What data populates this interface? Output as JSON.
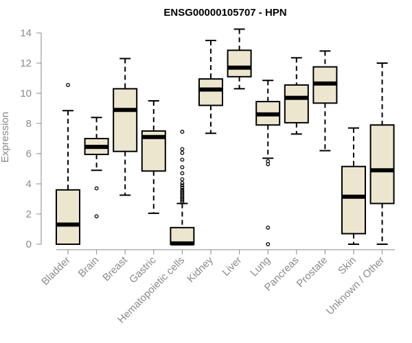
{
  "chart_data": {
    "type": "boxplot",
    "title": "ENSG00000105707 - HPN",
    "xlabel": "",
    "ylabel": "Expression",
    "ylim": [
      0,
      14
    ],
    "yticks": [
      0,
      2,
      4,
      6,
      8,
      10,
      12,
      14
    ],
    "grid": false,
    "legend": "none",
    "colors": {
      "box_fill": "#ede6cf",
      "box_stroke": "#000000",
      "median": "#000000",
      "axis": "#8a8a8a",
      "text": "#8a8a8a"
    },
    "categories": [
      "Bladder",
      "Brain",
      "Breast",
      "Gastric",
      "Hematopoietic cells",
      "Kidney",
      "Liver",
      "Lung",
      "Pancreas",
      "Prostate",
      "Skin",
      "Unknown / Other"
    ],
    "boxes": [
      {
        "category": "Bladder",
        "whisker_low": 0.0,
        "q1": 0.0,
        "median": 1.3,
        "q3": 3.6,
        "whisker_high": 8.85,
        "outliers": [
          10.55
        ]
      },
      {
        "category": "Brain",
        "whisker_low": 4.9,
        "q1": 5.95,
        "median": 6.45,
        "q3": 7.0,
        "whisker_high": 8.4,
        "outliers": [
          3.7,
          1.85
        ]
      },
      {
        "category": "Breast",
        "whisker_low": 3.25,
        "q1": 6.15,
        "median": 8.9,
        "q3": 10.3,
        "whisker_high": 12.3,
        "outliers": []
      },
      {
        "category": "Gastric",
        "whisker_low": 2.05,
        "q1": 4.85,
        "median": 7.1,
        "q3": 7.5,
        "whisker_high": 9.5,
        "outliers": []
      },
      {
        "category": "Hematopoietic cells",
        "whisker_low": 0.0,
        "q1": 0.0,
        "median": 0.05,
        "q3": 1.1,
        "whisker_high": 2.7,
        "outliers": [
          7.45,
          6.3,
          6.05,
          5.6,
          5.1,
          4.7,
          4.3,
          4.05,
          3.9,
          3.75,
          3.6,
          3.5,
          3.4,
          3.3,
          3.2,
          3.1,
          3.0,
          2.9,
          2.8
        ]
      },
      {
        "category": "Kidney",
        "whisker_low": 7.35,
        "q1": 9.2,
        "median": 10.25,
        "q3": 10.95,
        "whisker_high": 13.5,
        "outliers": []
      },
      {
        "category": "Liver",
        "whisker_low": 10.3,
        "q1": 11.1,
        "median": 11.7,
        "q3": 12.85,
        "whisker_high": 14.25,
        "outliers": []
      },
      {
        "category": "Lung",
        "whisker_low": 5.7,
        "q1": 7.9,
        "median": 8.6,
        "q3": 9.45,
        "whisker_high": 10.85,
        "outliers": [
          5.5,
          5.3,
          1.1,
          0.0
        ]
      },
      {
        "category": "Pancreas",
        "whisker_low": 7.3,
        "q1": 8.05,
        "median": 9.7,
        "q3": 10.55,
        "whisker_high": 12.35,
        "outliers": []
      },
      {
        "category": "Prostate",
        "whisker_low": 6.2,
        "q1": 9.35,
        "median": 10.65,
        "q3": 11.75,
        "whisker_high": 12.8,
        "outliers": []
      },
      {
        "category": "Skin",
        "whisker_low": 0.0,
        "q1": 0.7,
        "median": 3.15,
        "q3": 5.15,
        "whisker_high": 7.7,
        "outliers": []
      },
      {
        "category": "Unknown / Other",
        "whisker_low": 0.0,
        "q1": 2.7,
        "median": 4.9,
        "q3": 7.9,
        "whisker_high": 12.0,
        "outliers": []
      }
    ]
  }
}
